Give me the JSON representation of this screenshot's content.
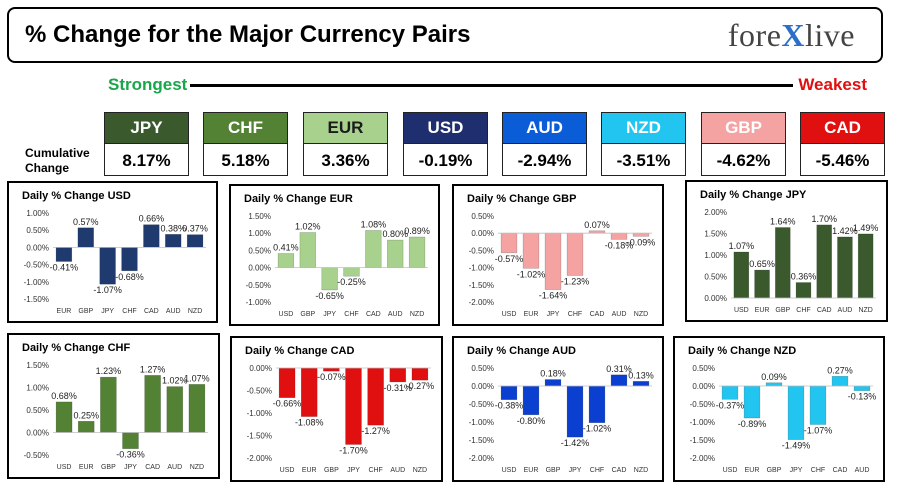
{
  "header": {
    "title": "% Change for the Major Currency Pairs",
    "brand_left": "fore",
    "brand_x": "X",
    "brand_right": "live"
  },
  "scale": {
    "strongest_label": "Strongest",
    "weakest_label": "Weakest"
  },
  "cumulative": {
    "label": "Cumulative Change",
    "currencies": [
      {
        "code": "JPY",
        "value": "8.17%",
        "color": "#3a5a2e"
      },
      {
        "code": "CHF",
        "value": "5.18%",
        "color": "#548235"
      },
      {
        "code": "EUR",
        "value": "3.36%",
        "color": "#a9d18e"
      },
      {
        "code": "USD",
        "value": "-0.19%",
        "color": "#1f2e6e"
      },
      {
        "code": "AUD",
        "value": "-2.94%",
        "color": "#0b5dd7"
      },
      {
        "code": "NZD",
        "value": "-3.51%",
        "color": "#22c5f0"
      },
      {
        "code": "GBP",
        "value": "-4.62%",
        "color": "#f4a2a2"
      },
      {
        "code": "CAD",
        "value": "-5.46%",
        "color": "#e01010"
      }
    ]
  },
  "chart_data": [
    {
      "type": "bar",
      "title": "Daily % Change USD",
      "color": "#1f3a6e",
      "categories": [
        "EUR",
        "GBP",
        "JPY",
        "CHF",
        "CAD",
        "AUD",
        "NZD"
      ],
      "values": [
        -0.41,
        0.57,
        -1.07,
        -0.68,
        0.66,
        0.38,
        0.37
      ],
      "labels": [
        "-0.41%",
        "0.57%",
        "-1.07%",
        "-0.68%",
        "0.66%",
        "0.38%",
        "0.37%"
      ],
      "ticks": [
        1.0,
        0.5,
        0.0,
        -0.5,
        -1.0,
        -1.5
      ],
      "tick_labels": [
        "1.00%",
        "0.50%",
        "0.00%",
        "-0.50%",
        "-1.00%",
        "-1.50%"
      ],
      "ylim": [
        -1.5,
        1.0
      ]
    },
    {
      "type": "bar",
      "title": "Daily % Change EUR",
      "color": "#a9d18e",
      "categories": [
        "USD",
        "GBP",
        "JPY",
        "CHF",
        "CAD",
        "AUD",
        "NZD"
      ],
      "values": [
        0.41,
        1.02,
        -0.65,
        -0.25,
        1.08,
        0.8,
        0.89
      ],
      "labels": [
        "0.41%",
        "1.02%",
        "-0.65%",
        "-0.25%",
        "1.08%",
        "0.80%",
        "0.89%"
      ],
      "ticks": [
        1.5,
        1.0,
        0.5,
        0.0,
        -0.5,
        -1.0
      ],
      "tick_labels": [
        "1.50%",
        "1.00%",
        "0.50%",
        "0.00%",
        "-0.50%",
        "-1.00%"
      ],
      "ylim": [
        -1.0,
        1.5
      ]
    },
    {
      "type": "bar",
      "title": "Daily % Change GBP",
      "color": "#f4a2a2",
      "categories": [
        "USD",
        "EUR",
        "JPY",
        "CHF",
        "CAD",
        "AUD",
        "NZD"
      ],
      "values": [
        -0.57,
        -1.02,
        -1.64,
        -1.23,
        0.07,
        -0.18,
        -0.09
      ],
      "labels": [
        "-0.57%",
        "-1.02%",
        "-1.64%",
        "-1.23%",
        "0.07%",
        "-0.18%",
        "-0.09%"
      ],
      "ticks": [
        0.5,
        0.0,
        -0.5,
        -1.0,
        -1.5,
        -2.0
      ],
      "tick_labels": [
        "0.50%",
        "0.00%",
        "-0.50%",
        "-1.00%",
        "-1.50%",
        "-2.00%"
      ],
      "ylim": [
        -2.0,
        0.5
      ]
    },
    {
      "type": "bar",
      "title": "Daily % Change JPY",
      "color": "#3a5a2e",
      "categories": [
        "USD",
        "EUR",
        "GBP",
        "CHF",
        "CAD",
        "AUD",
        "NZD"
      ],
      "values": [
        1.07,
        0.65,
        1.64,
        0.36,
        1.7,
        1.42,
        1.49
      ],
      "labels": [
        "1.07%",
        "0.65%",
        "1.64%",
        "0.36%",
        "1.70%",
        "1.42%",
        "1.49%"
      ],
      "ticks": [
        2.0,
        1.5,
        1.0,
        0.5,
        0.0
      ],
      "tick_labels": [
        "2.00%",
        "1.50%",
        "1.00%",
        "0.50%",
        "0.00%"
      ],
      "ylim": [
        0.0,
        2.0
      ]
    },
    {
      "type": "bar",
      "title": "Daily % Change CHF",
      "color": "#548235",
      "categories": [
        "USD",
        "EUR",
        "GBP",
        "JPY",
        "CAD",
        "AUD",
        "NZD"
      ],
      "values": [
        0.68,
        0.25,
        1.23,
        -0.36,
        1.27,
        1.02,
        1.07
      ],
      "labels": [
        "0.68%",
        "0.25%",
        "1.23%",
        "-0.36%",
        "1.27%",
        "1.02%",
        "1.07%"
      ],
      "ticks": [
        1.5,
        1.0,
        0.5,
        0.0,
        -0.5
      ],
      "tick_labels": [
        "1.50%",
        "1.00%",
        "0.50%",
        "0.00%",
        "-0.50%"
      ],
      "ylim": [
        -0.5,
        1.5
      ]
    },
    {
      "type": "bar",
      "title": "Daily % Change CAD",
      "color": "#e01010",
      "categories": [
        "USD",
        "EUR",
        "GBP",
        "JPY",
        "CHF",
        "AUD",
        "NZD"
      ],
      "values": [
        -0.66,
        -1.08,
        -0.07,
        -1.7,
        -1.27,
        -0.31,
        -0.27
      ],
      "labels": [
        "-0.66%",
        "-1.08%",
        "-0.07%",
        "-1.70%",
        "-1.27%",
        "-0.31%",
        "-0.27%"
      ],
      "ticks": [
        0.0,
        -0.5,
        -1.0,
        -1.5,
        -2.0
      ],
      "tick_labels": [
        "0.00%",
        "-0.50%",
        "-1.00%",
        "-1.50%",
        "-2.00%"
      ],
      "ylim": [
        -2.0,
        0.0
      ]
    },
    {
      "type": "bar",
      "title": "Daily % Change AUD",
      "color": "#0b3fd0",
      "categories": [
        "USD",
        "EUR",
        "GBP",
        "JPY",
        "CHF",
        "CAD",
        "NZD"
      ],
      "values": [
        -0.38,
        -0.8,
        0.18,
        -1.42,
        -1.02,
        0.31,
        0.13
      ],
      "labels": [
        "-0.38%",
        "-0.80%",
        "0.18%",
        "-1.42%",
        "-1.02%",
        "0.31%",
        "0.13%"
      ],
      "ticks": [
        0.5,
        0.0,
        -0.5,
        -1.0,
        -1.5,
        -2.0
      ],
      "tick_labels": [
        "0.50%",
        "0.00%",
        "-0.50%",
        "-1.00%",
        "-1.50%",
        "-2.00%"
      ],
      "ylim": [
        -2.0,
        0.5
      ]
    },
    {
      "type": "bar",
      "title": "Daily % Change NZD",
      "color": "#22c5f0",
      "categories": [
        "USD",
        "EUR",
        "GBP",
        "JPY",
        "CHF",
        "CAD",
        "AUD"
      ],
      "values": [
        -0.37,
        -0.89,
        0.09,
        -1.49,
        -1.07,
        0.27,
        -0.13
      ],
      "labels": [
        "-0.37%",
        "-0.89%",
        "0.09%",
        "-1.49%",
        "-1.07%",
        "0.27%",
        "-0.13%"
      ],
      "ticks": [
        0.5,
        0.0,
        -0.5,
        -1.0,
        -1.5,
        -2.0
      ],
      "tick_labels": [
        "0.50%",
        "0.00%",
        "-0.50%",
        "-1.00%",
        "-1.50%",
        "-2.00%"
      ],
      "ylim": [
        -2.0,
        0.5
      ]
    }
  ]
}
